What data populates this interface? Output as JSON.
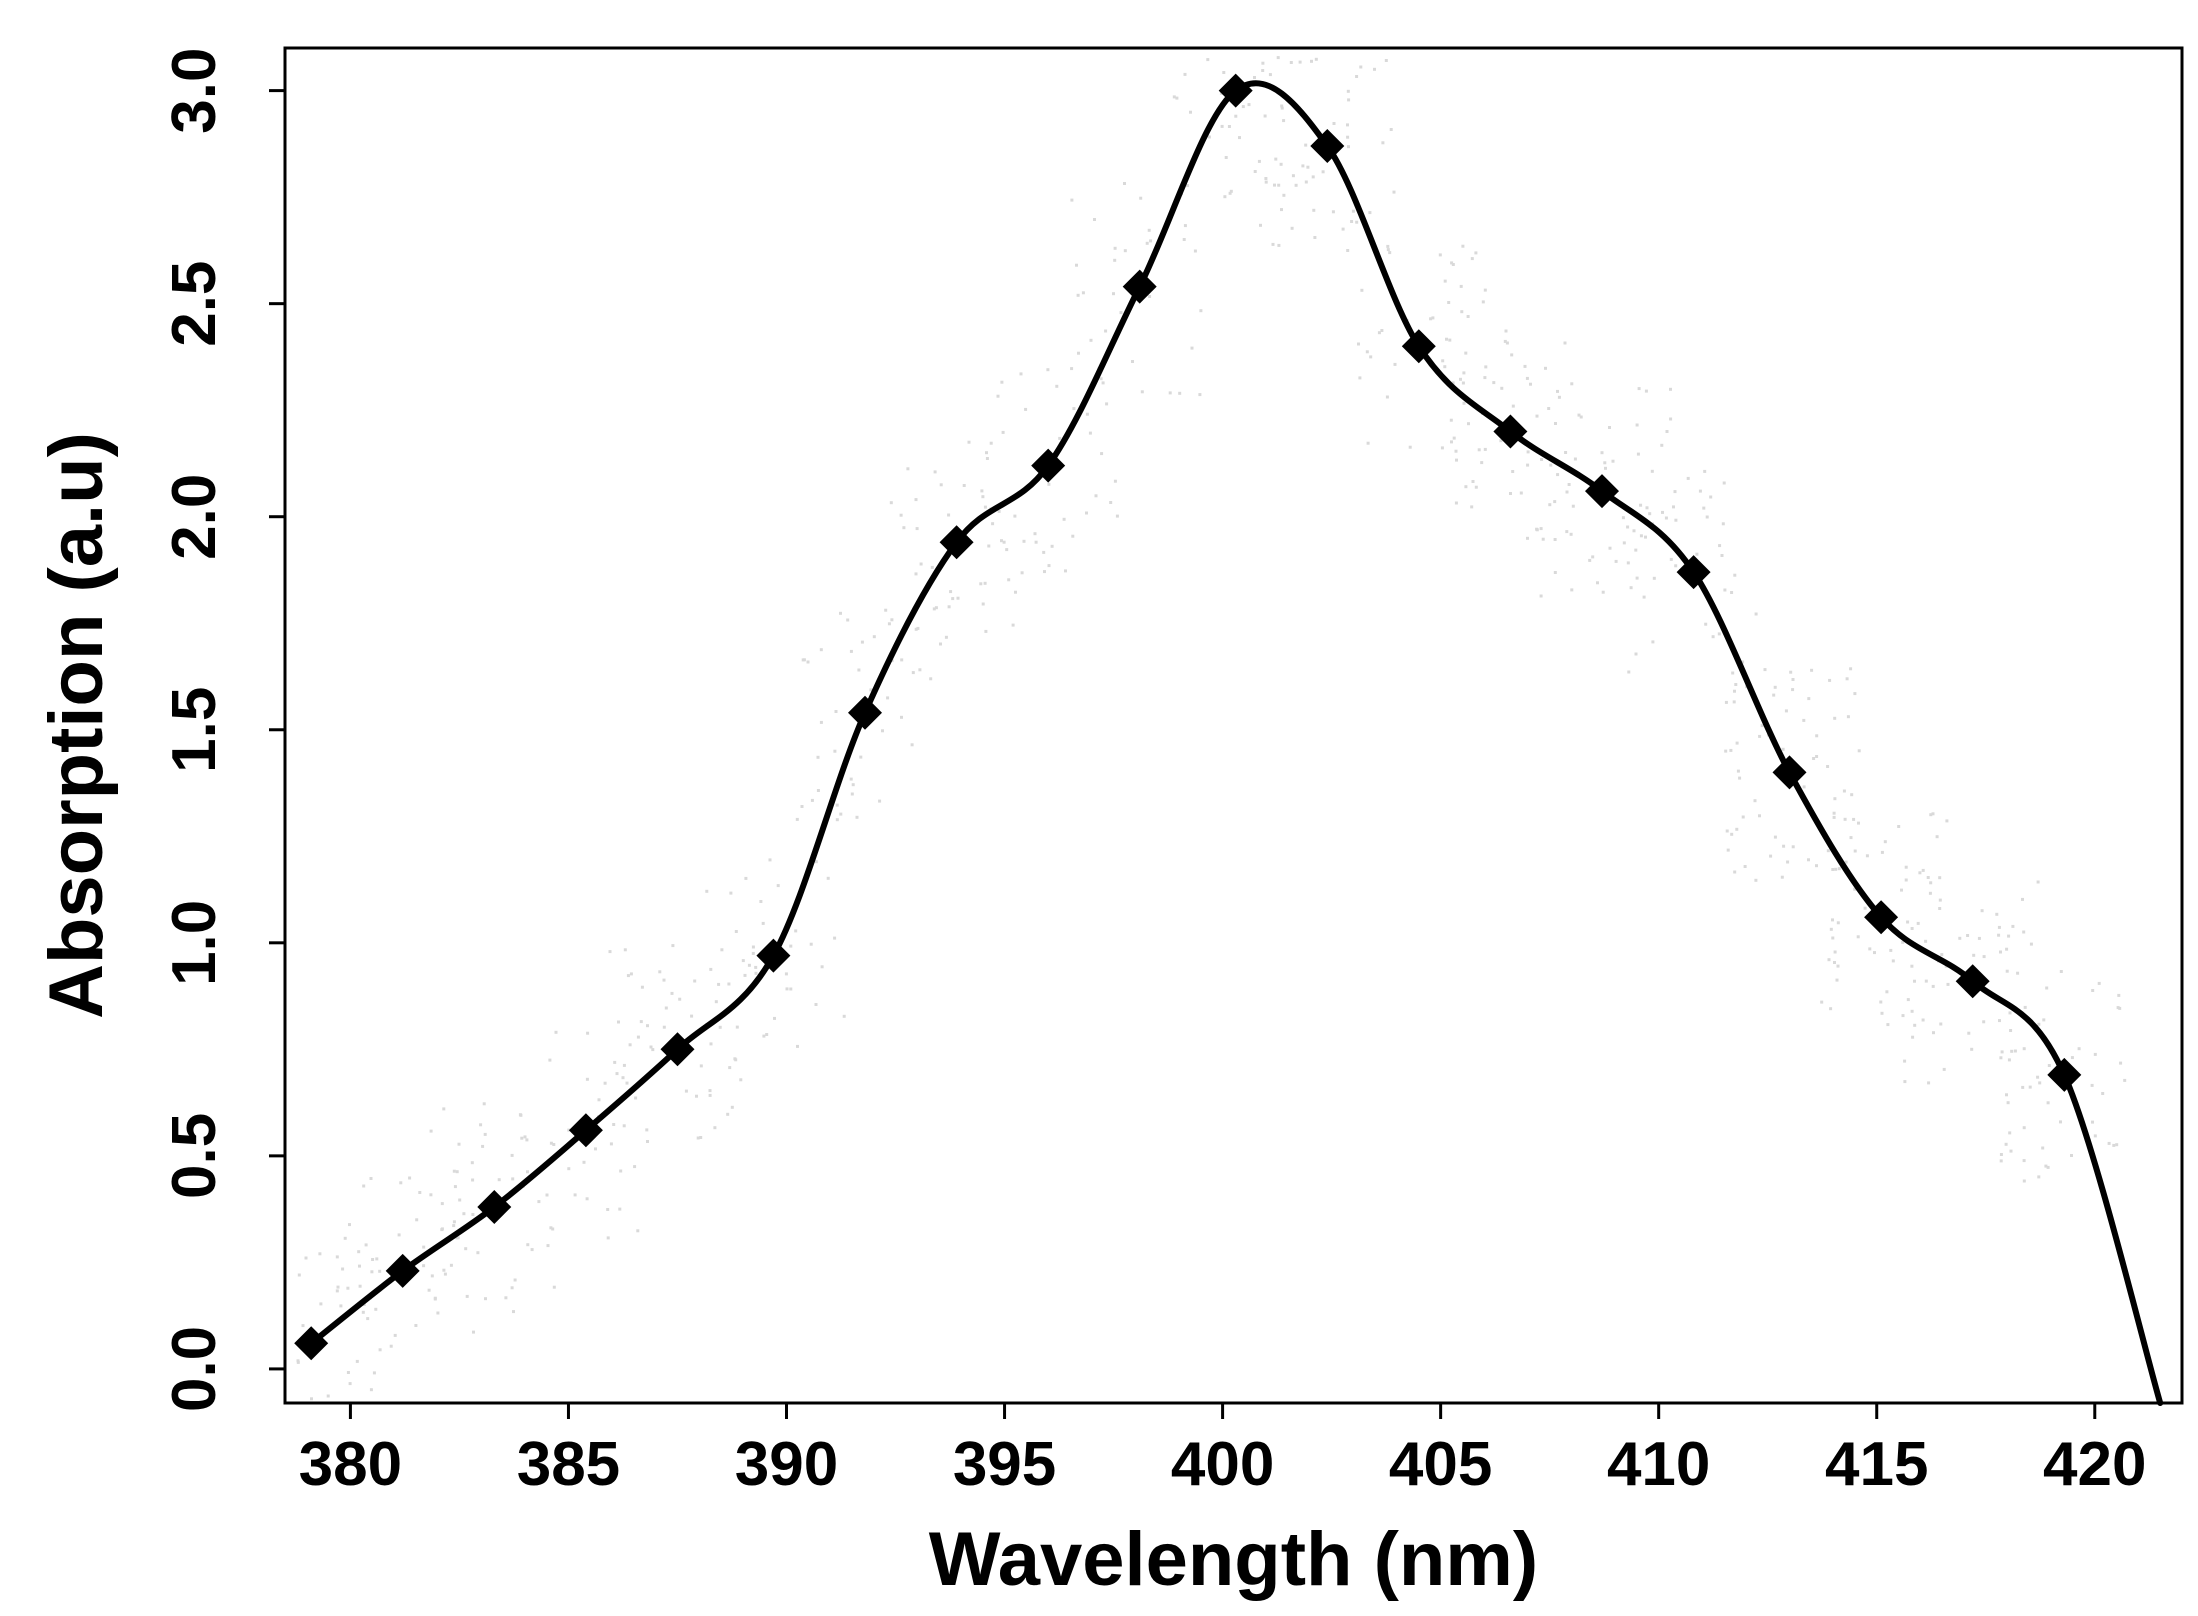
{
  "chart_data": {
    "type": "line",
    "title": "",
    "xlabel": "Wavelength (nm)",
    "ylabel": "Absorption (a.u)",
    "xlim": [
      378.5,
      422
    ],
    "ylim": [
      -0.08,
      3.1
    ],
    "x_ticks": [
      "380",
      "385",
      "390",
      "395",
      "400",
      "405",
      "410",
      "415",
      "420"
    ],
    "x_tick_values": [
      380,
      385,
      390,
      395,
      400,
      405,
      410,
      415,
      420
    ],
    "y_ticks": [
      "0.0",
      "0.5",
      "1.0",
      "1.5",
      "2.0",
      "2.5",
      "3.0"
    ],
    "y_tick_values": [
      0.0,
      0.5,
      1.0,
      1.5,
      2.0,
      2.5,
      3.0
    ],
    "grid": false,
    "legend": "none",
    "series": [
      {
        "color": "#000000",
        "marker": "diamond",
        "x": [
          379.1,
          381.2,
          383.3,
          385.4,
          387.5,
          389.7,
          391.8,
          393.9,
          396.0,
          398.1,
          400.3,
          402.4,
          404.5,
          406.6,
          408.7,
          410.8,
          413.0,
          415.1,
          417.2,
          419.3
        ],
        "y": [
          0.06,
          0.23,
          0.38,
          0.56,
          0.75,
          0.97,
          1.54,
          1.94,
          2.12,
          2.54,
          3.0,
          2.87,
          2.4,
          2.2,
          2.06,
          1.87,
          1.4,
          1.06,
          0.91,
          0.69
        ]
      }
    ],
    "tail": {
      "x": [
        421.5
      ],
      "y": [
        -0.08
      ]
    }
  }
}
